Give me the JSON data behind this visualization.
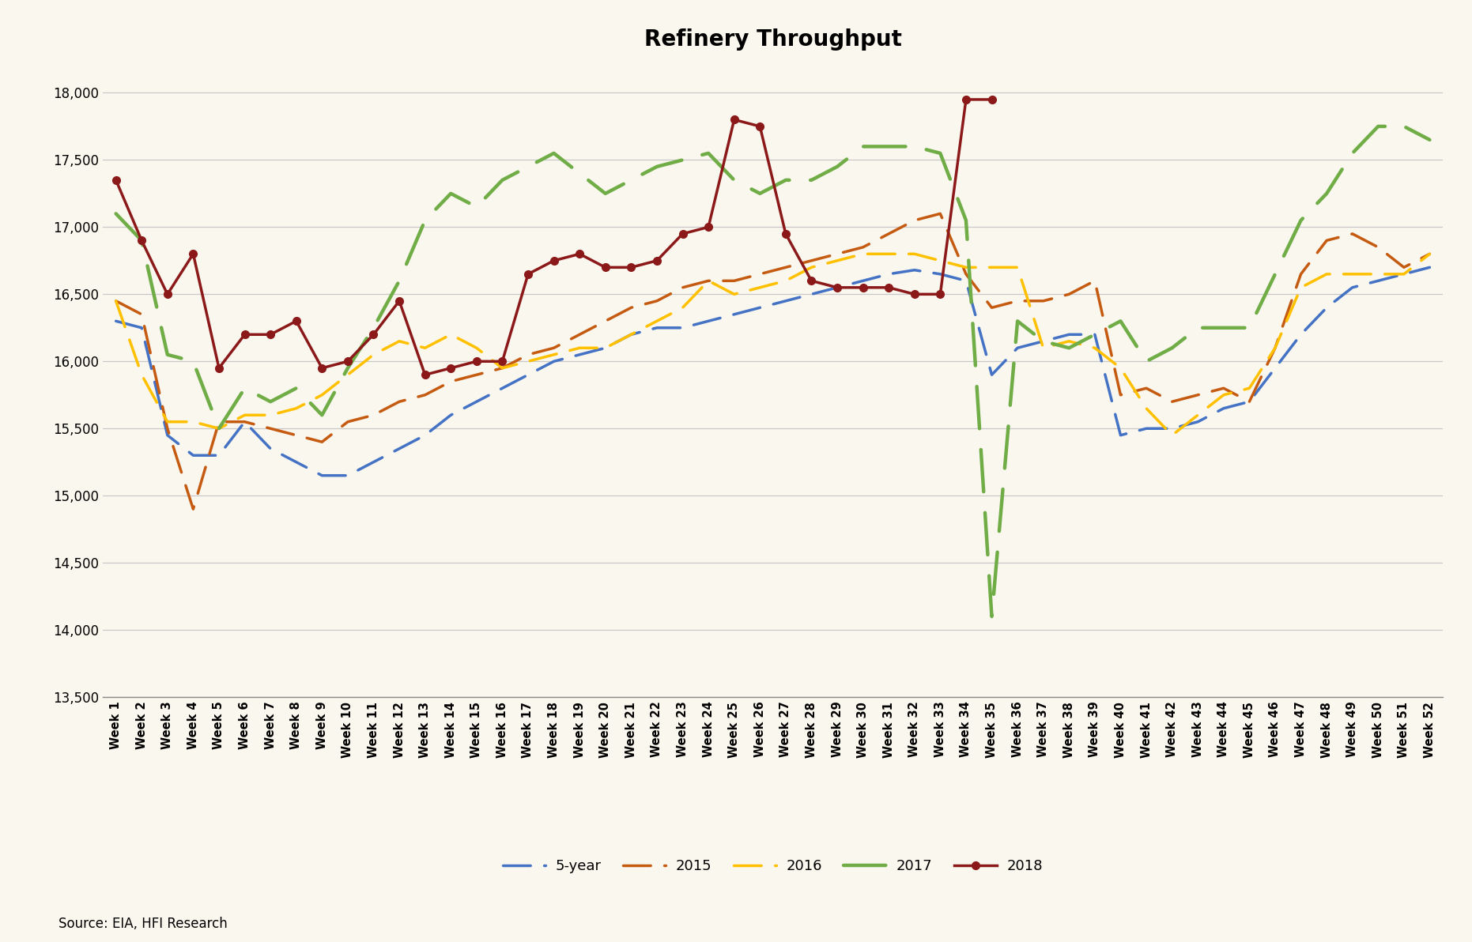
{
  "title": "Refinery Throughput",
  "source": "Source: EIA, HFI Research",
  "background_color": "#FAF7EE",
  "xlabels": [
    "Week 1",
    "Week 2",
    "Week 3",
    "Week 4",
    "Week 5",
    "Week 6",
    "Week 7",
    "Week 8",
    "Week 9",
    "Week 10",
    "Week 11",
    "Week 12",
    "Week 13",
    "Week 14",
    "Week 15",
    "Week 16",
    "Week 17",
    "Week 18",
    "Week 19",
    "Week 20",
    "Week 21",
    "Week 22",
    "Week 23",
    "Week 24",
    "Week 25",
    "Week 26",
    "Week 27",
    "Week 28",
    "Week 29",
    "Week 30",
    "Week 31",
    "Week 32",
    "Week 33",
    "Week 34",
    "Week 35",
    "Week 36",
    "Week 37",
    "Week 38",
    "Week 39",
    "Week 40",
    "Week 41",
    "Week 42",
    "Week 43",
    "Week 44",
    "Week 45",
    "Week 46",
    "Week 47",
    "Week 48",
    "Week 49",
    "Week 50",
    "Week 51",
    "Week 52"
  ],
  "five_year": [
    16300,
    16250,
    15450,
    15300,
    15300,
    15550,
    15350,
    15250,
    15150,
    15150,
    15250,
    15350,
    15450,
    15600,
    15700,
    15800,
    15900,
    16000,
    16050,
    16100,
    16200,
    16250,
    16250,
    16300,
    16350,
    16400,
    16450,
    16500,
    16550,
    16600,
    16650,
    16680,
    16650,
    16600,
    15900,
    16100,
    16150,
    16200,
    16200,
    15450,
    15500,
    15500,
    15550,
    15650,
    15700,
    15950,
    16200,
    16400,
    16550,
    16600,
    16650,
    16700
  ],
  "y2015": [
    16450,
    16350,
    15500,
    14900,
    15550,
    15550,
    15500,
    15450,
    15400,
    15550,
    15600,
    15700,
    15750,
    15850,
    15900,
    15950,
    16050,
    16100,
    16200,
    16300,
    16400,
    16450,
    16550,
    16600,
    16600,
    16650,
    16700,
    16750,
    16800,
    16850,
    16950,
    17050,
    17100,
    16650,
    16400,
    16450,
    16450,
    16500,
    16600,
    15750,
    15800,
    15700,
    15750,
    15800,
    15700,
    16100,
    16650,
    16900,
    16950,
    16850,
    16700,
    16800
  ],
  "y2016": [
    16450,
    15900,
    15550,
    15550,
    15500,
    15600,
    15600,
    15650,
    15750,
    15900,
    16050,
    16150,
    16100,
    16200,
    16100,
    15950,
    16000,
    16050,
    16100,
    16100,
    16200,
    16300,
    16400,
    16600,
    16500,
    16550,
    16600,
    16700,
    16750,
    16800,
    16800,
    16800,
    16750,
    16700,
    16700,
    16700,
    16100,
    16150,
    16100,
    15950,
    15650,
    15450,
    15600,
    15750,
    15800,
    16100,
    16550,
    16650,
    16650,
    16650,
    16650,
    16800
  ],
  "y2017": [
    17100,
    16900,
    16050,
    16000,
    15500,
    15800,
    15700,
    15800,
    15600,
    15950,
    16250,
    16600,
    17050,
    17250,
    17150,
    17350,
    17450,
    17550,
    17400,
    17250,
    17350,
    17450,
    17500,
    17550,
    17350,
    17250,
    17350,
    17350,
    17450,
    17600,
    17600,
    17600,
    17550,
    17050,
    14100,
    16300,
    16150,
    16100,
    16200,
    16300,
    16000,
    16100,
    16250,
    16250,
    16250,
    16650,
    17050,
    17250,
    17550,
    17750,
    17750,
    17650
  ],
  "y2018": [
    17350,
    16900,
    16500,
    16800,
    15950,
    16200,
    16200,
    16300,
    15950,
    16000,
    16200,
    16450,
    15900,
    15950,
    16000,
    16000,
    16650,
    16750,
    16800,
    16700,
    16700,
    16750,
    16950,
    17000,
    17800,
    17750,
    16950,
    16600,
    16550,
    16550,
    16550,
    16500,
    16500,
    17950,
    17950,
    null,
    null,
    null,
    null,
    null,
    null,
    null,
    null,
    null,
    null,
    null,
    null,
    null,
    null,
    null,
    null,
    null
  ],
  "five_year_color": "#4472C4",
  "y2015_color": "#C55A11",
  "y2016_color": "#FFC000",
  "y2017_color": "#70AD47",
  "y2018_color": "#8B1919",
  "ylim": [
    13500,
    18200
  ],
  "yticks": [
    13500,
    14000,
    14500,
    15000,
    15500,
    16000,
    16500,
    17000,
    17500,
    18000
  ],
  "legend_labels": [
    "5-year",
    "2015",
    "2016",
    "2017",
    "2018"
  ]
}
